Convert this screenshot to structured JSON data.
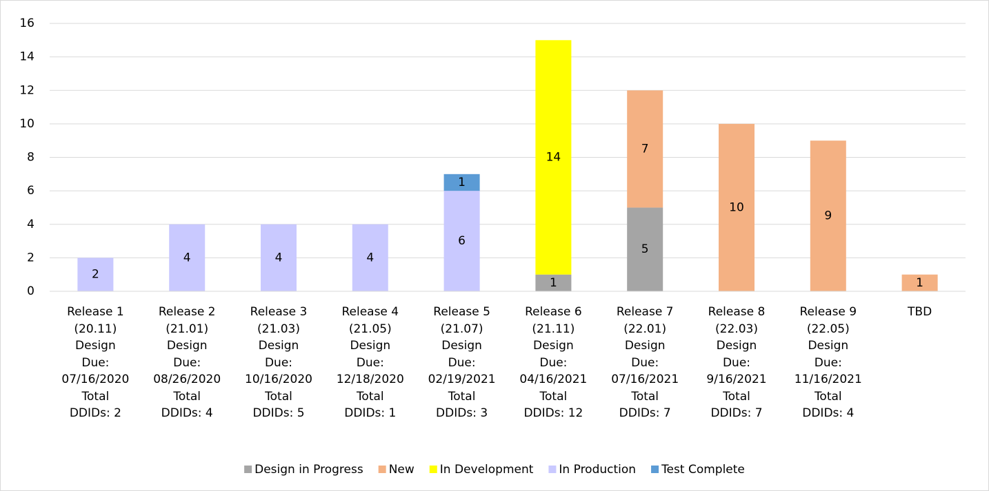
{
  "chart_data": {
    "type": "stacked_bar",
    "categories": [
      "Release 1\n(20.11)\nDesign\nDue:\n07/16/2020\nTotal\nDDIDs: 2",
      "Release 2\n(21.01)\nDesign\nDue:\n08/26/2020\nTotal\nDDIDs: 4",
      "Release 3\n(21.03)\nDesign\nDue:\n10/16/2020\nTotal\nDDIDs: 5",
      "Release 4\n(21.05)\nDesign\nDue:\n12/18/2020\nTotal\nDDIDs: 1",
      "Release 5\n(21.07)\nDesign\nDue:\n02/19/2021\nTotal\nDDIDs: 3",
      "Release 6\n(21.11)\nDesign\nDue:\n04/16/2021\nTotal\nDDIDs: 12",
      "Release 7\n(22.01)\nDesign\nDue:\n07/16/2021\nTotal\nDDIDs: 7",
      "Release 8\n(22.03)\nDesign\nDue:\n9/16/2021\nTotal\nDDIDs: 7",
      "Release 9\n(22.05)\nDesign\nDue:\n11/16/2021\nTotal\nDDIDs: 4",
      "TBD"
    ],
    "series": [
      {
        "name": "Design in Progress",
        "color": "#a5a5a5",
        "values": [
          null,
          null,
          null,
          null,
          null,
          1,
          5,
          null,
          null,
          null
        ]
      },
      {
        "name": "New",
        "color": "#f4b183",
        "values": [
          null,
          null,
          null,
          null,
          null,
          null,
          7,
          10,
          9,
          1
        ]
      },
      {
        "name": "In Development",
        "color": "#ffff00",
        "values": [
          null,
          null,
          null,
          null,
          null,
          14,
          null,
          null,
          null,
          null
        ]
      },
      {
        "name": "In Production",
        "color": "#c9c9ff",
        "values": [
          2,
          4,
          4,
          4,
          6,
          null,
          null,
          null,
          null,
          null
        ]
      },
      {
        "name": "Test Complete",
        "color": "#5b9bd5",
        "values": [
          null,
          null,
          null,
          null,
          1,
          null,
          null,
          null,
          null,
          null
        ]
      }
    ],
    "ylim": [
      0,
      16
    ],
    "yticks": [
      0,
      2,
      4,
      6,
      8,
      10,
      12,
      14,
      16
    ],
    "grid": true,
    "legend": "bottom"
  }
}
